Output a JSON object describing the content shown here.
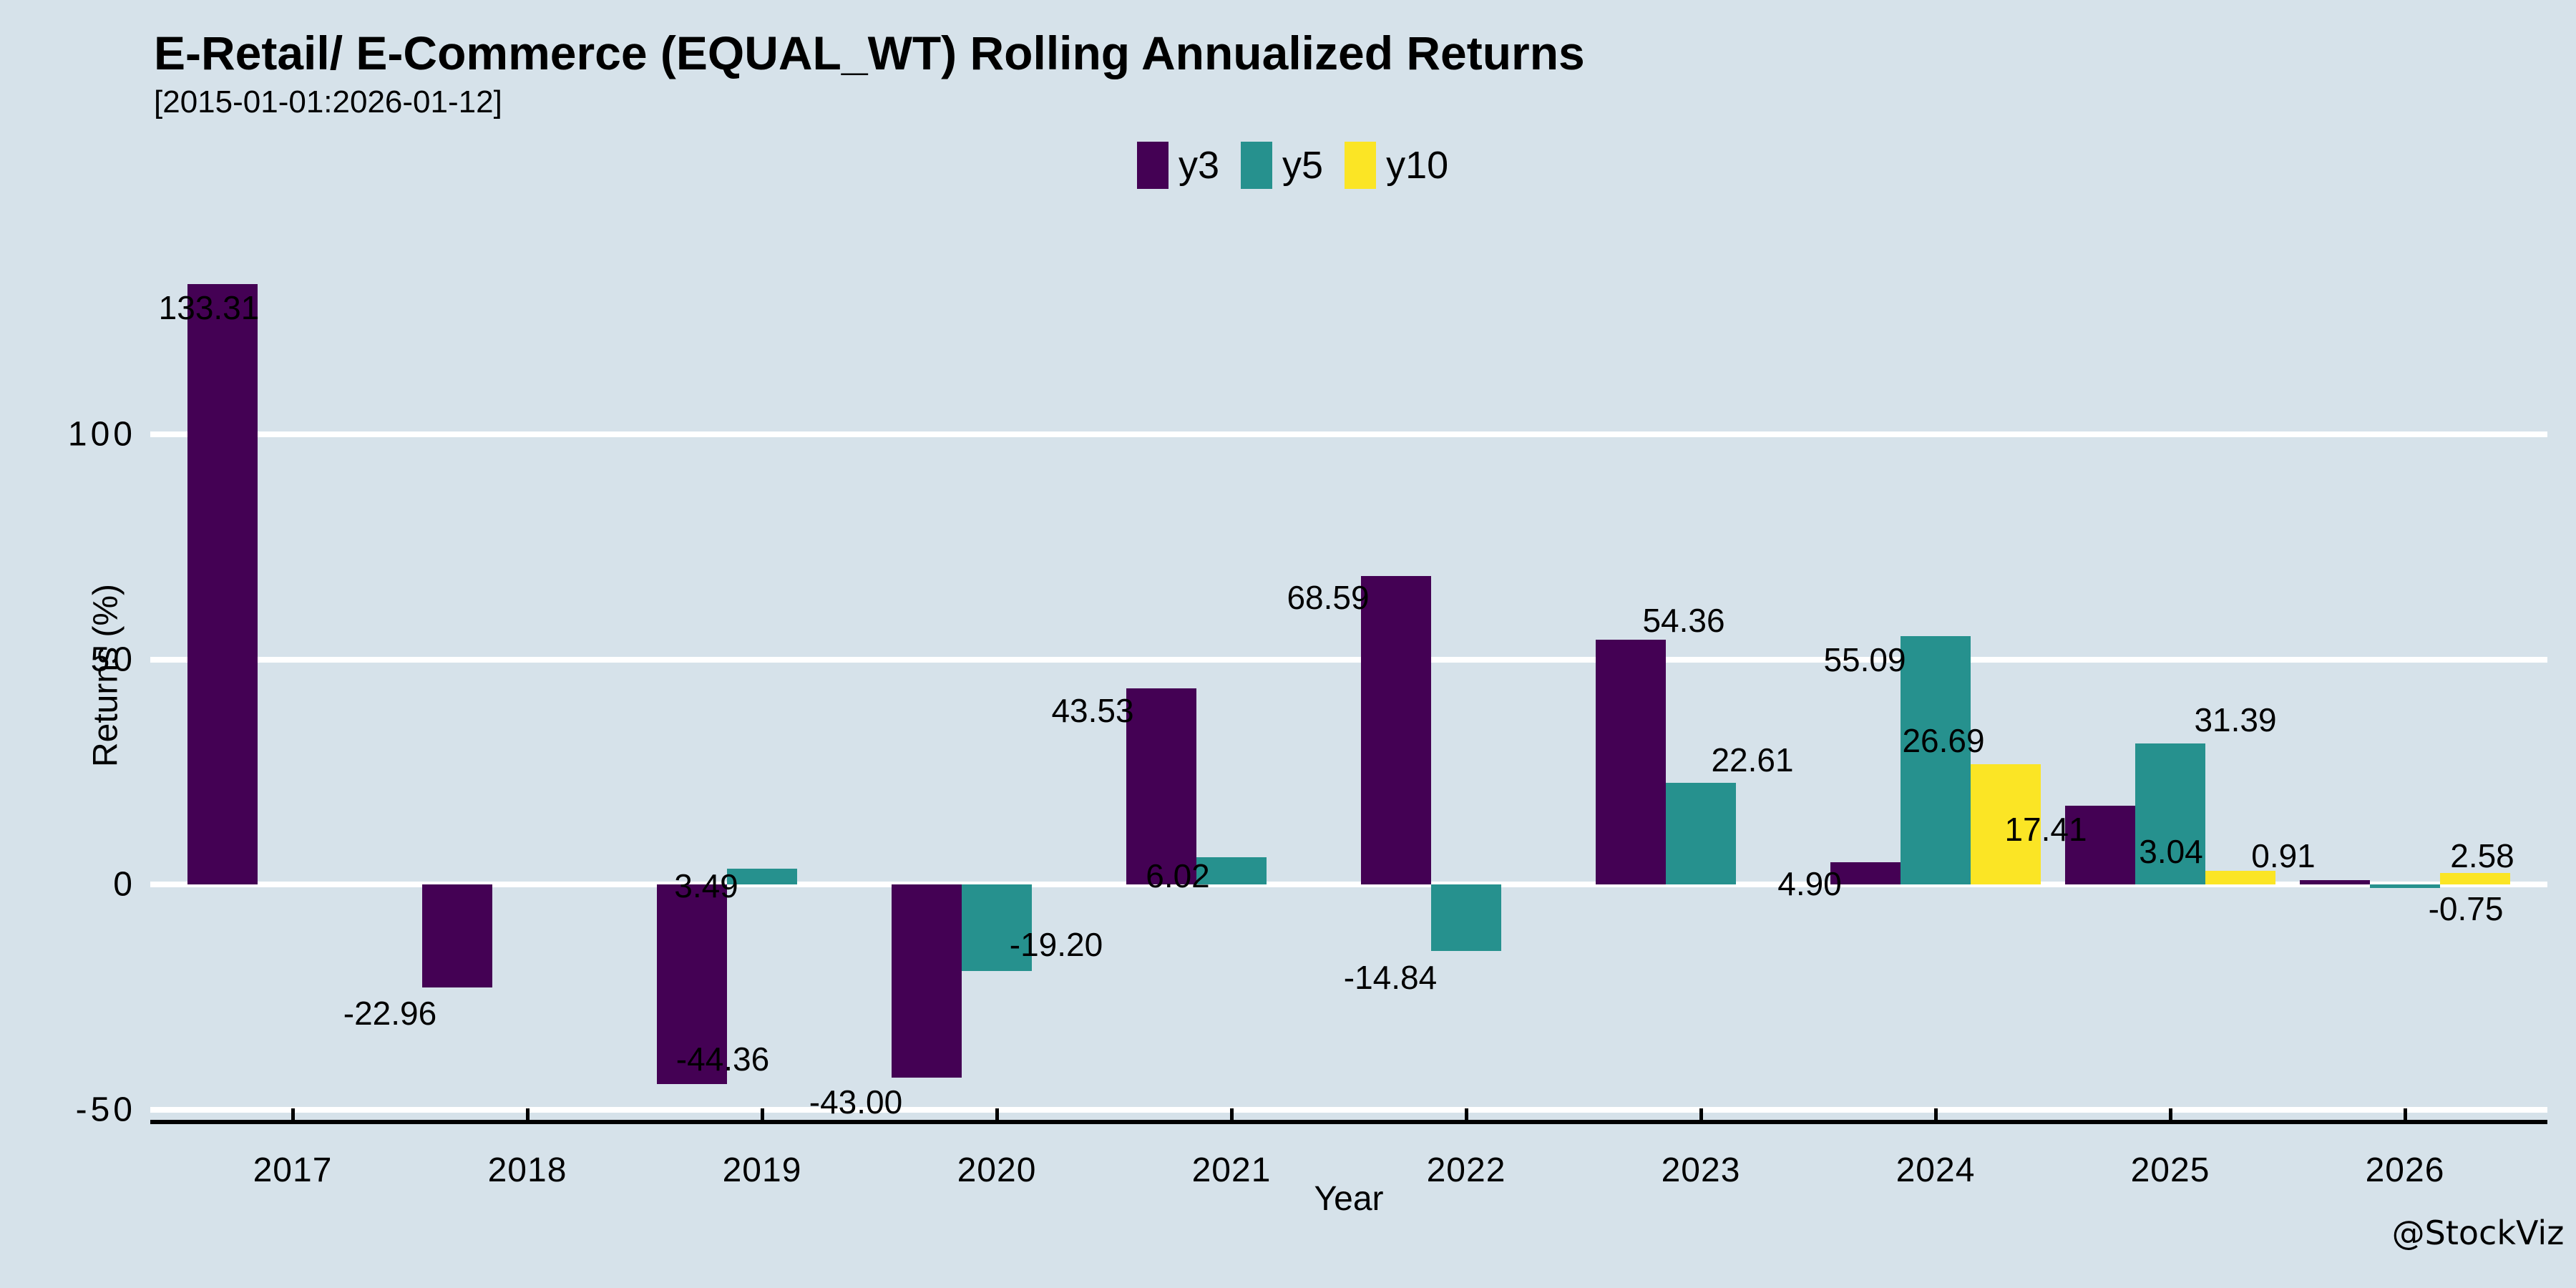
{
  "title": "E-Retail/ E-Commerce (EQUAL_WT) Rolling Annualized Returns",
  "subtitle": "[2015-01-01:2026-01-12]",
  "watermark": "@StockViz",
  "colors": {
    "background": "#d6e2ea",
    "y3": "#440154",
    "y5": "#26918e",
    "y10": "#fbe525",
    "grid": "#ffffff",
    "axis": "#000000",
    "text": "#000000"
  },
  "chart_data": {
    "type": "bar",
    "title": "E-Retail/ E-Commerce (EQUAL_WT) Rolling Annualized Returns",
    "subtitle": "[2015-01-01:2026-01-12]",
    "categories": [
      "2017",
      "2018",
      "2019",
      "2020",
      "2021",
      "2022",
      "2023",
      "2024",
      "2025",
      "2026"
    ],
    "series": [
      {
        "name": "y3",
        "color_key": "y3",
        "values": [
          133.31,
          -22.96,
          -44.36,
          -43.0,
          43.53,
          68.59,
          54.36,
          4.9,
          17.41,
          0.91
        ]
      },
      {
        "name": "y5",
        "color_key": "y5",
        "values": [
          null,
          null,
          3.49,
          -19.2,
          6.02,
          -14.84,
          22.61,
          55.09,
          31.39,
          -0.75
        ]
      },
      {
        "name": "y10",
        "color_key": "y10",
        "values": [
          null,
          null,
          null,
          null,
          null,
          null,
          null,
          26.69,
          3.04,
          2.58
        ]
      }
    ],
    "xlabel": "Year",
    "ylabel": "Returns (%)",
    "yticks": [
      100,
      50,
      0,
      -50
    ],
    "ylim": [
      -54,
      136
    ],
    "grid": "horizontal",
    "legend_position": "top-center",
    "value_labels_decimals": 2
  }
}
